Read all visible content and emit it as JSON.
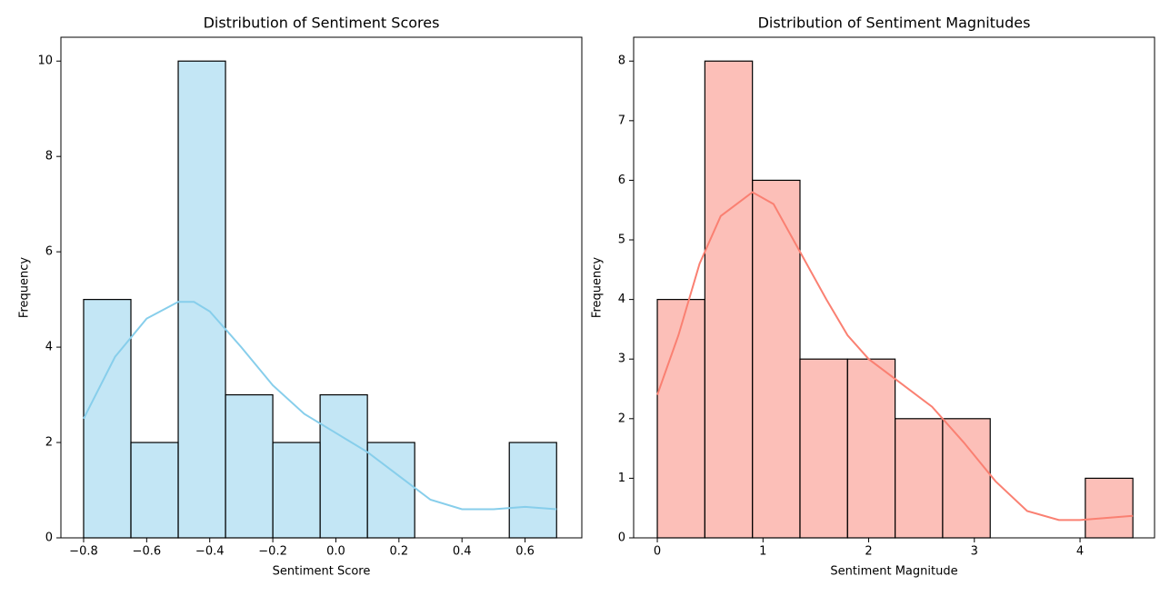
{
  "chart_data": [
    {
      "type": "histogram",
      "title": "Distribution of Sentiment Scores",
      "x_label": "Sentiment Score",
      "y_label": "Frequency",
      "bins": [
        -0.8,
        -0.65,
        -0.5,
        -0.35,
        -0.2,
        -0.05,
        0.1,
        0.25,
        0.4,
        0.55,
        0.7
      ],
      "values": [
        5,
        2,
        10,
        3,
        2,
        3,
        2,
        0,
        0,
        2
      ],
      "color": "#87ceeb",
      "alpha": 0.5,
      "edgecolor": "#000000",
      "kde": {
        "color": "#87ceeb",
        "x": [
          -0.8,
          -0.7,
          -0.6,
          -0.5,
          -0.45,
          -0.4,
          -0.3,
          -0.2,
          -0.1,
          0,
          0.1,
          0.2,
          0.3,
          0.4,
          0.5,
          0.6,
          0.7
        ],
        "y": [
          2.5,
          3.8,
          4.6,
          4.95,
          4.95,
          4.75,
          4.0,
          3.2,
          2.6,
          2.2,
          1.8,
          1.3,
          0.8,
          0.6,
          0.6,
          0.65,
          0.6
        ]
      },
      "xlim": [
        -0.872,
        0.78
      ],
      "ylim": [
        0,
        10.5
      ],
      "xticks": [
        {
          "value": -0.8,
          "label": "−0.8"
        },
        {
          "value": -0.6,
          "label": "−0.6"
        },
        {
          "value": -0.4,
          "label": "−0.4"
        },
        {
          "value": -0.2,
          "label": "−0.2"
        },
        {
          "value": 0,
          "label": "0.0"
        },
        0.2,
        0.4,
        0.6
      ],
      "yticks": [
        0,
        2,
        4,
        6,
        8,
        10
      ]
    },
    {
      "type": "histogram",
      "title": "Distribution of Sentiment Magnitudes",
      "x_label": "Sentiment Magnitude",
      "y_label": "Frequency",
      "bins": [
        0,
        0.45,
        0.9,
        1.35,
        1.8,
        2.25,
        2.7,
        3.15,
        3.6,
        4.05,
        4.5
      ],
      "values": [
        4,
        8,
        6,
        3,
        3,
        2,
        2,
        0,
        0,
        1
      ],
      "color": "#fa8072",
      "alpha": 0.5,
      "edgecolor": "#000000",
      "kde": {
        "color": "#fa8072",
        "x": [
          0,
          0.2,
          0.4,
          0.6,
          0.9,
          1.1,
          1.35,
          1.6,
          1.8,
          2.0,
          2.3,
          2.6,
          2.9,
          3.2,
          3.5,
          3.8,
          4.0,
          4.5
        ],
        "y": [
          2.4,
          3.4,
          4.6,
          5.4,
          5.8,
          5.6,
          4.8,
          4.0,
          3.4,
          3.0,
          2.6,
          2.2,
          1.6,
          0.95,
          0.45,
          0.3,
          0.3,
          0.37
        ]
      },
      "xlim": [
        -0.224,
        4.705
      ],
      "ylim": [
        0,
        8.4
      ],
      "xticks": [
        0,
        1,
        2,
        3,
        4
      ],
      "yticks": [
        0,
        1,
        2,
        3,
        4,
        5,
        6,
        7,
        8
      ]
    }
  ]
}
